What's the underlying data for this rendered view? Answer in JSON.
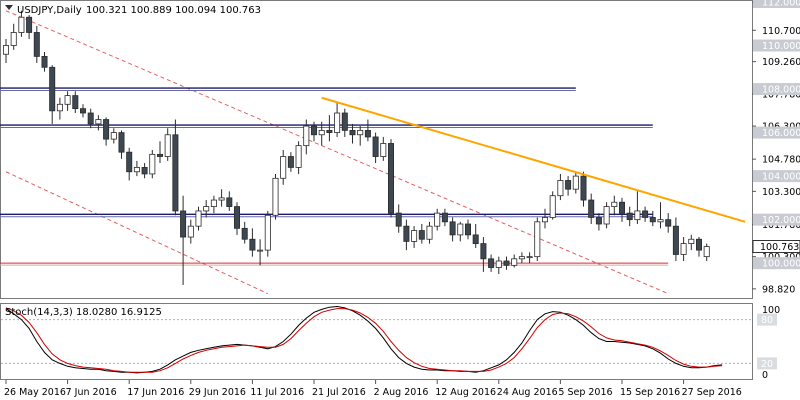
{
  "header": {
    "symbol": "USDJPY,Daily",
    "ohlc": "100.321 100.889 100.094 100.763"
  },
  "stoch_label": "Stoch(14,3,3) 18.0280 16.9125",
  "colors": {
    "bull": "#ffffff",
    "bear": "#3d4852",
    "trendline": "#ffa500",
    "channel": "#e04040",
    "resistance_line": "#1a1a6e",
    "label_bg": "#c8ccd2",
    "stoch_main": "#000000",
    "stoch_signal": "#d00000"
  },
  "chart_data": [
    {
      "type": "candlestick",
      "title": "USDJPY,Daily",
      "ylim": [
        98.4,
        112.0
      ],
      "price_ticks": [
        "112.000",
        "110.700",
        "109.260",
        "107.780",
        "106.300",
        "104.780",
        "103.300",
        "101.780",
        "100.300",
        "98.820"
      ],
      "price_labels": [
        {
          "text": "112.000",
          "value": 112.0
        },
        {
          "text": "110.000",
          "value": 110.0
        },
        {
          "text": "108.000",
          "value": 108.0
        },
        {
          "text": "106.000",
          "value": 106.0
        },
        {
          "text": "104.000",
          "value": 104.0
        },
        {
          "text": "102.000",
          "value": 102.0
        },
        {
          "text": "100.000",
          "value": 100.0
        }
      ],
      "current_price": {
        "text": "100.763",
        "value": 100.763
      },
      "date_ticks": [
        {
          "label": "26 May 2016",
          "index": 0
        },
        {
          "label": "7 Jun 2016",
          "index": 8
        },
        {
          "label": "17 Jun 2016",
          "index": 16
        },
        {
          "label": "29 Jun 2016",
          "index": 24
        },
        {
          "label": "11 Jul 2016",
          "index": 32
        },
        {
          "label": "21 Jul 2016",
          "index": 40
        },
        {
          "label": "2 Aug 2016",
          "index": 48
        },
        {
          "label": "12 Aug 2016",
          "index": 56
        },
        {
          "label": "24 Aug 2016",
          "index": 64
        },
        {
          "label": "5 Sep 2016",
          "index": 72
        },
        {
          "label": "15 Sep 2016",
          "index": 80
        },
        {
          "label": "27 Sep 2016",
          "index": 88
        }
      ],
      "horizontal_levels": [
        {
          "value": 108.0,
          "kind": "resistance",
          "from_index": 0,
          "to_index": 74
        },
        {
          "value": 106.3,
          "kind": "resistance",
          "from_index": 0,
          "to_index": 84
        },
        {
          "value": 102.2,
          "kind": "resistance",
          "from_index": 0,
          "to_index": 84
        },
        {
          "value": 100.0,
          "kind": "support",
          "from_index": 0,
          "to_index": 86
        }
      ],
      "trendline": {
        "from_index": 41,
        "from_value": 107.6,
        "to_index": 96,
        "to_value": 101.9
      },
      "channel": [
        {
          "from_index": 0,
          "from_value": 111.6,
          "to_index": 86,
          "to_value": 98.6
        },
        {
          "from_index": 0,
          "from_value": 104.2,
          "to_index": 34,
          "to_value": 98.6
        }
      ],
      "candles": [
        {
          "o": 109.6,
          "h": 110.3,
          "l": 109.2,
          "c": 110.0
        },
        {
          "o": 110.0,
          "h": 111.0,
          "l": 109.8,
          "c": 110.6
        },
        {
          "o": 110.6,
          "h": 111.6,
          "l": 110.4,
          "c": 111.3
        },
        {
          "o": 111.3,
          "h": 111.4,
          "l": 110.3,
          "c": 110.6
        },
        {
          "o": 110.6,
          "h": 110.9,
          "l": 109.2,
          "c": 109.5
        },
        {
          "o": 109.5,
          "h": 109.7,
          "l": 108.8,
          "c": 109.0
        },
        {
          "o": 109.0,
          "h": 109.1,
          "l": 106.4,
          "c": 107.0
        },
        {
          "o": 107.0,
          "h": 107.6,
          "l": 106.6,
          "c": 107.3
        },
        {
          "o": 107.3,
          "h": 107.9,
          "l": 107.0,
          "c": 107.7
        },
        {
          "o": 107.7,
          "h": 107.9,
          "l": 106.9,
          "c": 107.1
        },
        {
          "o": 107.1,
          "h": 107.3,
          "l": 106.7,
          "c": 106.9
        },
        {
          "o": 106.9,
          "h": 107.1,
          "l": 106.2,
          "c": 106.4
        },
        {
          "o": 106.4,
          "h": 106.8,
          "l": 106.1,
          "c": 106.6
        },
        {
          "o": 106.6,
          "h": 106.7,
          "l": 105.4,
          "c": 105.7
        },
        {
          "o": 105.7,
          "h": 106.2,
          "l": 105.5,
          "c": 106.0
        },
        {
          "o": 106.0,
          "h": 106.1,
          "l": 104.8,
          "c": 105.1
        },
        {
          "o": 105.1,
          "h": 105.3,
          "l": 103.8,
          "c": 104.2
        },
        {
          "o": 104.2,
          "h": 104.7,
          "l": 104.0,
          "c": 104.4
        },
        {
          "o": 104.4,
          "h": 104.6,
          "l": 103.9,
          "c": 104.1
        },
        {
          "o": 104.1,
          "h": 105.2,
          "l": 103.9,
          "c": 105.0
        },
        {
          "o": 105.0,
          "h": 105.6,
          "l": 104.6,
          "c": 104.9
        },
        {
          "o": 104.9,
          "h": 106.2,
          "l": 104.7,
          "c": 105.9
        },
        {
          "o": 105.9,
          "h": 106.6,
          "l": 102.2,
          "c": 102.4
        },
        {
          "o": 102.4,
          "h": 103.1,
          "l": 99.0,
          "c": 101.2
        },
        {
          "o": 101.2,
          "h": 102.0,
          "l": 100.9,
          "c": 101.7
        },
        {
          "o": 101.7,
          "h": 102.6,
          "l": 101.5,
          "c": 102.4
        },
        {
          "o": 102.4,
          "h": 102.9,
          "l": 102.1,
          "c": 102.6
        },
        {
          "o": 102.6,
          "h": 103.1,
          "l": 102.3,
          "c": 102.9
        },
        {
          "o": 102.9,
          "h": 103.4,
          "l": 102.6,
          "c": 103.0
        },
        {
          "o": 103.0,
          "h": 103.3,
          "l": 102.4,
          "c": 102.6
        },
        {
          "o": 102.6,
          "h": 102.8,
          "l": 101.3,
          "c": 101.6
        },
        {
          "o": 101.6,
          "h": 101.9,
          "l": 100.9,
          "c": 101.1
        },
        {
          "o": 101.1,
          "h": 101.6,
          "l": 100.3,
          "c": 100.6
        },
        {
          "o": 100.6,
          "h": 101.1,
          "l": 99.9,
          "c": 100.6
        },
        {
          "o": 100.6,
          "h": 102.4,
          "l": 100.3,
          "c": 102.2
        },
        {
          "o": 102.2,
          "h": 104.1,
          "l": 102.0,
          "c": 103.9
        },
        {
          "o": 103.9,
          "h": 105.2,
          "l": 103.6,
          "c": 104.9
        },
        {
          "o": 104.9,
          "h": 105.1,
          "l": 104.2,
          "c": 104.4
        },
        {
          "o": 104.4,
          "h": 105.6,
          "l": 104.1,
          "c": 105.4
        },
        {
          "o": 105.4,
          "h": 106.6,
          "l": 105.0,
          "c": 106.3
        },
        {
          "o": 106.3,
          "h": 106.5,
          "l": 105.6,
          "c": 105.9
        },
        {
          "o": 105.9,
          "h": 106.5,
          "l": 105.4,
          "c": 106.1
        },
        {
          "o": 106.1,
          "h": 106.8,
          "l": 105.6,
          "c": 106.0
        },
        {
          "o": 106.0,
          "h": 107.4,
          "l": 105.8,
          "c": 106.9
        },
        {
          "o": 106.9,
          "h": 107.1,
          "l": 105.8,
          "c": 106.1
        },
        {
          "o": 106.1,
          "h": 106.4,
          "l": 105.5,
          "c": 105.9
        },
        {
          "o": 105.9,
          "h": 106.3,
          "l": 105.4,
          "c": 106.1
        },
        {
          "o": 106.1,
          "h": 106.6,
          "l": 105.6,
          "c": 105.8
        },
        {
          "o": 105.8,
          "h": 106.0,
          "l": 104.6,
          "c": 104.9
        },
        {
          "o": 104.9,
          "h": 105.8,
          "l": 104.7,
          "c": 105.5
        },
        {
          "o": 105.5,
          "h": 105.7,
          "l": 102.1,
          "c": 102.3
        },
        {
          "o": 102.3,
          "h": 102.7,
          "l": 101.4,
          "c": 101.7
        },
        {
          "o": 101.7,
          "h": 102.0,
          "l": 100.6,
          "c": 101.0
        },
        {
          "o": 101.0,
          "h": 101.7,
          "l": 100.7,
          "c": 101.5
        },
        {
          "o": 101.5,
          "h": 101.8,
          "l": 100.9,
          "c": 101.1
        },
        {
          "o": 101.1,
          "h": 101.9,
          "l": 100.9,
          "c": 101.7
        },
        {
          "o": 101.7,
          "h": 102.5,
          "l": 101.5,
          "c": 102.3
        },
        {
          "o": 102.3,
          "h": 102.5,
          "l": 101.7,
          "c": 101.9
        },
        {
          "o": 101.9,
          "h": 102.1,
          "l": 101.0,
          "c": 101.3
        },
        {
          "o": 101.3,
          "h": 101.9,
          "l": 101.0,
          "c": 101.8
        },
        {
          "o": 101.8,
          "h": 102.0,
          "l": 101.1,
          "c": 101.3
        },
        {
          "o": 101.3,
          "h": 101.8,
          "l": 100.7,
          "c": 100.9
        },
        {
          "o": 100.9,
          "h": 101.2,
          "l": 99.6,
          "c": 100.2
        },
        {
          "o": 100.2,
          "h": 100.4,
          "l": 99.6,
          "c": 99.8
        },
        {
          "o": 99.8,
          "h": 100.3,
          "l": 99.5,
          "c": 100.1
        },
        {
          "o": 100.1,
          "h": 100.3,
          "l": 99.7,
          "c": 99.9
        },
        {
          "o": 99.9,
          "h": 100.4,
          "l": 99.8,
          "c": 100.2
        },
        {
          "o": 100.2,
          "h": 100.5,
          "l": 100.0,
          "c": 100.3
        },
        {
          "o": 100.3,
          "h": 100.5,
          "l": 100.0,
          "c": 100.3
        },
        {
          "o": 100.3,
          "h": 102.1,
          "l": 100.1,
          "c": 101.9
        },
        {
          "o": 101.9,
          "h": 102.5,
          "l": 101.6,
          "c": 102.1
        },
        {
          "o": 102.1,
          "h": 103.3,
          "l": 102.0,
          "c": 103.1
        },
        {
          "o": 103.1,
          "h": 104.1,
          "l": 102.9,
          "c": 103.8
        },
        {
          "o": 103.8,
          "h": 104.0,
          "l": 103.1,
          "c": 103.4
        },
        {
          "o": 103.4,
          "h": 104.2,
          "l": 103.2,
          "c": 104.0
        },
        {
          "o": 104.0,
          "h": 104.2,
          "l": 102.6,
          "c": 102.9
        },
        {
          "o": 102.9,
          "h": 103.2,
          "l": 101.8,
          "c": 102.1
        },
        {
          "o": 102.1,
          "h": 102.3,
          "l": 101.5,
          "c": 101.8
        },
        {
          "o": 101.8,
          "h": 102.8,
          "l": 101.6,
          "c": 102.6
        },
        {
          "o": 102.6,
          "h": 103.1,
          "l": 102.2,
          "c": 102.8
        },
        {
          "o": 102.8,
          "h": 103.0,
          "l": 101.9,
          "c": 102.3
        },
        {
          "o": 102.3,
          "h": 102.6,
          "l": 101.7,
          "c": 102.0
        },
        {
          "o": 102.0,
          "h": 103.3,
          "l": 101.8,
          "c": 102.4
        },
        {
          "o": 102.4,
          "h": 102.6,
          "l": 101.9,
          "c": 102.1
        },
        {
          "o": 102.1,
          "h": 102.4,
          "l": 101.7,
          "c": 101.9
        },
        {
          "o": 101.9,
          "h": 102.8,
          "l": 101.6,
          "c": 102.0
        },
        {
          "o": 102.0,
          "h": 102.3,
          "l": 101.4,
          "c": 101.7
        },
        {
          "o": 101.7,
          "h": 102.1,
          "l": 100.1,
          "c": 100.4
        },
        {
          "o": 100.4,
          "h": 101.2,
          "l": 100.1,
          "c": 100.9
        },
        {
          "o": 100.9,
          "h": 101.3,
          "l": 100.6,
          "c": 101.1
        },
        {
          "o": 101.1,
          "h": 101.2,
          "l": 100.3,
          "c": 100.6
        },
        {
          "o": 100.3,
          "h": 100.9,
          "l": 100.1,
          "c": 100.763
        }
      ]
    },
    {
      "type": "line",
      "title": "Stoch(14,3,3) 18.0280 16.9125",
      "ylim": [
        0,
        100
      ],
      "levels": [
        {
          "text": "80",
          "value": 80
        },
        {
          "text": "20",
          "value": 20
        }
      ],
      "scale_labels": [
        {
          "text": "100",
          "value": 100
        },
        {
          "text": "0",
          "value": 0
        }
      ],
      "series": [
        {
          "name": "main",
          "values": [
            95,
            88,
            80,
            68,
            50,
            35,
            25,
            20,
            16,
            14,
            13,
            12,
            12,
            10,
            9,
            8,
            8,
            7,
            8,
            9,
            12,
            18,
            25,
            30,
            35,
            38,
            40,
            42,
            44,
            45,
            46,
            45,
            44,
            42,
            40,
            43,
            50,
            60,
            72,
            82,
            90,
            94,
            97,
            98,
            96,
            92,
            86,
            78,
            68,
            55,
            40,
            28,
            20,
            15,
            12,
            11,
            11,
            10,
            10,
            9,
            9,
            8,
            10,
            14,
            18,
            25,
            35,
            48,
            65,
            80,
            88,
            91,
            90,
            86,
            80,
            72,
            62,
            54,
            50,
            50,
            49,
            48,
            46,
            44,
            40,
            34,
            26,
            20,
            16,
            14,
            14,
            15,
            17,
            18
          ]
        },
        {
          "name": "signal",
          "values": [
            96,
            92,
            86,
            76,
            62,
            46,
            33,
            25,
            20,
            17,
            15,
            14,
            13,
            12,
            10,
            9,
            8,
            8,
            8,
            8,
            10,
            14,
            20,
            26,
            31,
            35,
            38,
            40,
            42,
            43,
            44,
            45,
            44,
            43,
            42,
            42,
            46,
            54,
            65,
            75,
            84,
            90,
            93,
            95,
            95,
            93,
            89,
            83,
            75,
            64,
            50,
            38,
            28,
            21,
            16,
            13,
            12,
            11,
            10,
            10,
            9,
            9,
            9,
            11,
            15,
            20,
            28,
            40,
            54,
            69,
            80,
            87,
            89,
            88,
            84,
            78,
            70,
            61,
            55,
            52,
            51,
            49,
            47,
            45,
            42,
            37,
            31,
            24,
            19,
            16,
            15,
            15,
            16,
            17
          ]
        }
      ]
    }
  ]
}
